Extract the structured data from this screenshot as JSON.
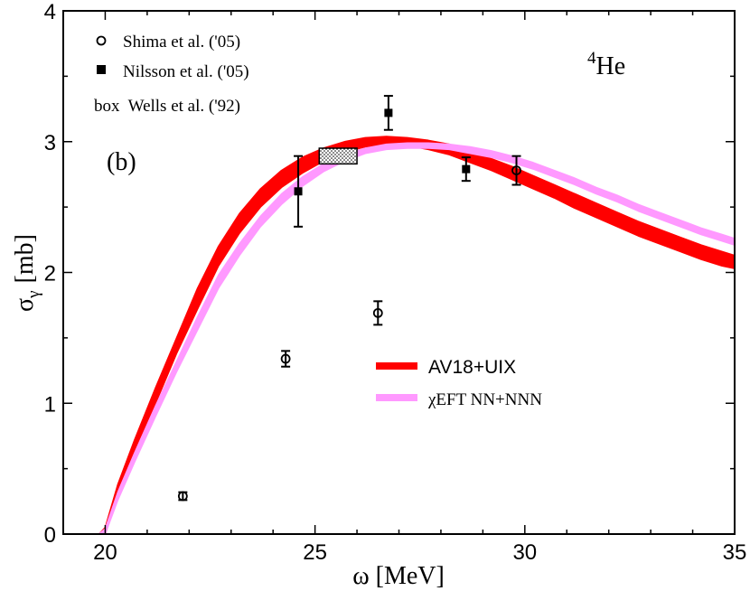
{
  "chart_data": {
    "type": "scatter",
    "title": "",
    "xlabel": "ω [MeV]",
    "ylabel_main": "σ",
    "ylabel_sub": "γ",
    "ylabel_unit": "[mb]",
    "xlim": [
      19,
      35
    ],
    "ylim": [
      0,
      4
    ],
    "xticks": [
      20,
      25,
      30,
      35
    ],
    "yticks": [
      0,
      1,
      2,
      3,
      4
    ],
    "nucleus_sup": "4",
    "nucleus": "He",
    "panel_label": "(b)",
    "legend": {
      "shima": "Shima et al. ('05)",
      "nilsson": "Nilsson et al. ('05)",
      "wells": "box  Wells et al. ('92)",
      "av18": "AV18+UIX",
      "eft": "χEFT NN+NNN"
    },
    "colors": {
      "av18": "#ff0000",
      "eft": "#ff99ff"
    },
    "series": [
      {
        "name": "AV18+UIX",
        "kind": "band",
        "x": [
          19.85,
          20.0,
          20.3,
          20.7,
          21.2,
          21.7,
          22.2,
          22.7,
          23.2,
          23.7,
          24.2,
          24.7,
          25.2,
          25.7,
          26.2,
          26.7,
          27.2,
          27.7,
          28.2,
          28.7,
          29.2,
          29.7,
          30.2,
          30.7,
          31.2,
          31.7,
          32.2,
          32.7,
          33.2,
          33.7,
          34.2,
          34.7,
          35.0
        ],
        "upper": [
          0.0,
          0.05,
          0.38,
          0.72,
          1.12,
          1.5,
          1.88,
          2.2,
          2.45,
          2.64,
          2.78,
          2.88,
          2.95,
          3.0,
          3.03,
          3.04,
          3.03,
          3.01,
          2.98,
          2.93,
          2.87,
          2.81,
          2.74,
          2.67,
          2.6,
          2.53,
          2.46,
          2.39,
          2.33,
          2.27,
          2.21,
          2.16,
          2.13
        ],
        "lower": [
          0.0,
          0.0,
          0.28,
          0.62,
          1.0,
          1.38,
          1.72,
          2.05,
          2.3,
          2.5,
          2.65,
          2.76,
          2.85,
          2.92,
          2.96,
          2.98,
          2.97,
          2.94,
          2.9,
          2.84,
          2.78,
          2.71,
          2.64,
          2.57,
          2.49,
          2.42,
          2.35,
          2.28,
          2.22,
          2.16,
          2.1,
          2.05,
          2.03
        ]
      },
      {
        "name": "χEFT NN+NNN",
        "kind": "band",
        "x": [
          19.85,
          20.0,
          20.3,
          20.7,
          21.2,
          21.7,
          22.2,
          22.7,
          23.2,
          23.7,
          24.2,
          24.7,
          25.2,
          25.7,
          26.2,
          26.7,
          27.2,
          27.7,
          28.2,
          28.7,
          29.2,
          29.7,
          30.2,
          30.7,
          31.2,
          31.7,
          32.2,
          32.7,
          33.2,
          33.7,
          34.2,
          34.7,
          35.0
        ],
        "upper": [
          0.0,
          0.04,
          0.32,
          0.62,
          0.98,
          1.32,
          1.66,
          1.98,
          2.22,
          2.43,
          2.6,
          2.73,
          2.83,
          2.9,
          2.95,
          2.98,
          2.99,
          2.99,
          2.98,
          2.96,
          2.93,
          2.89,
          2.84,
          2.78,
          2.72,
          2.65,
          2.59,
          2.52,
          2.46,
          2.4,
          2.34,
          2.29,
          2.26
        ],
        "lower": [
          0.0,
          0.0,
          0.26,
          0.55,
          0.9,
          1.24,
          1.56,
          1.88,
          2.13,
          2.35,
          2.52,
          2.66,
          2.77,
          2.85,
          2.91,
          2.94,
          2.95,
          2.95,
          2.94,
          2.91,
          2.88,
          2.84,
          2.79,
          2.73,
          2.67,
          2.6,
          2.54,
          2.47,
          2.41,
          2.35,
          2.29,
          2.24,
          2.21
        ]
      },
      {
        "name": "Shima et al. ('05)",
        "kind": "points",
        "marker": "circle",
        "x": [
          21.85,
          24.3,
          26.5,
          29.8
        ],
        "y": [
          0.29,
          1.34,
          1.69,
          2.78
        ],
        "err": [
          0.03,
          0.06,
          0.09,
          0.11
        ]
      },
      {
        "name": "Nilsson et al. ('05)",
        "kind": "points",
        "marker": "square",
        "x": [
          24.6,
          26.75,
          28.6
        ],
        "y": [
          2.62,
          3.22,
          2.79
        ],
        "err": [
          0.27,
          0.13,
          0.09
        ]
      },
      {
        "name": "Wells et al. ('92)",
        "kind": "box",
        "x": [
          25.1,
          26.0
        ],
        "y": [
          2.83,
          2.95
        ]
      }
    ]
  }
}
